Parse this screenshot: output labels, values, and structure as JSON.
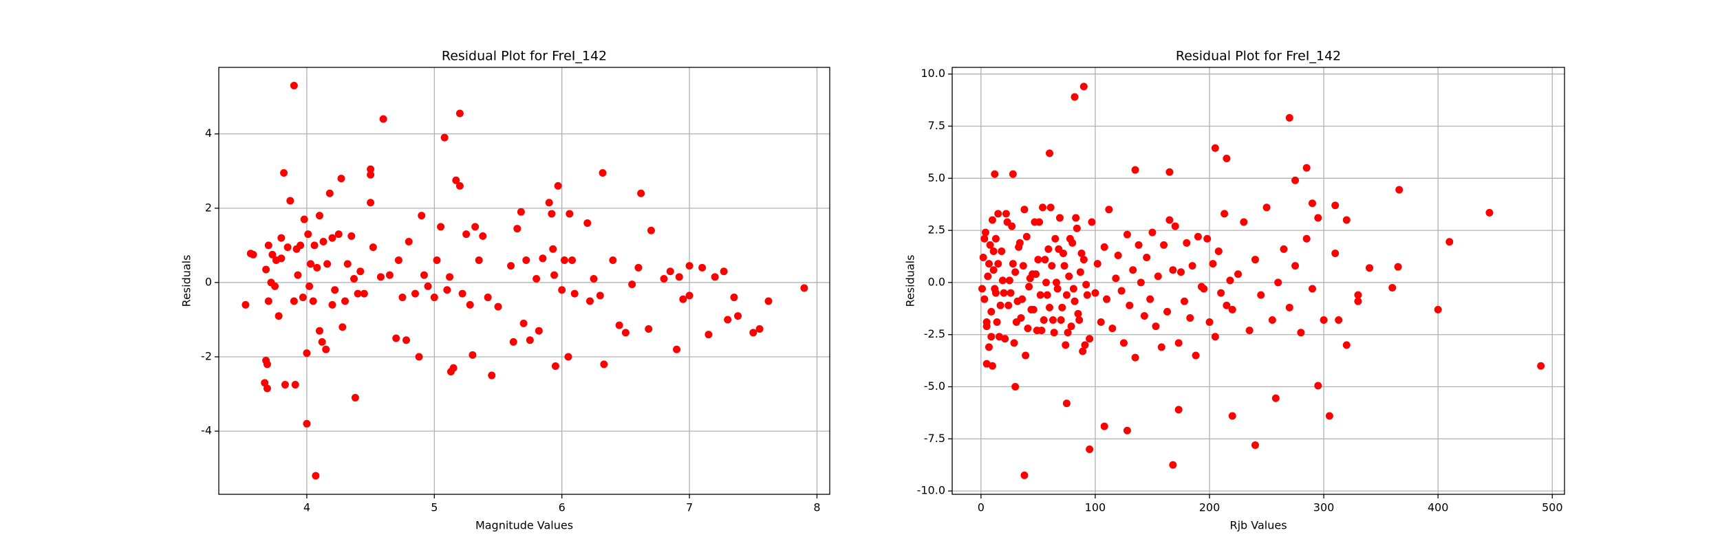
{
  "chart_data": [
    {
      "type": "scatter",
      "title": "Residual Plot for FreI_142",
      "xlabel": "Magnitude Values",
      "ylabel": "Residuals",
      "color": "#ff0000",
      "grid": true,
      "xlim": [
        3.31,
        8.1
      ],
      "ylim": [
        -5.7,
        5.79
      ],
      "xticks": [
        4,
        5,
        6,
        7,
        8
      ],
      "yticks": [
        -4,
        -2,
        0,
        2,
        4
      ],
      "x": [
        3.52,
        3.56,
        3.58,
        3.67,
        3.68,
        3.69,
        3.69,
        3.68,
        3.7,
        3.7,
        3.72,
        3.73,
        3.75,
        3.76,
        3.78,
        3.8,
        3.8,
        3.82,
        3.83,
        3.85,
        3.87,
        3.9,
        3.9,
        3.91,
        3.92,
        3.93,
        3.95,
        3.97,
        3.98,
        4.0,
        4.0,
        4.01,
        4.02,
        4.03,
        4.05,
        4.06,
        4.07,
        4.08,
        4.1,
        4.1,
        4.12,
        4.13,
        4.15,
        4.16,
        4.18,
        4.2,
        4.2,
        4.22,
        4.25,
        4.27,
        4.28,
        4.3,
        4.32,
        4.35,
        4.37,
        4.38,
        4.4,
        4.42,
        4.45,
        4.5,
        4.5,
        4.5,
        4.52,
        4.58,
        4.6,
        4.65,
        4.7,
        4.72,
        4.75,
        4.78,
        4.8,
        4.85,
        4.88,
        4.9,
        4.92,
        4.95,
        5.0,
        5.02,
        5.05,
        5.08,
        5.1,
        5.12,
        5.13,
        5.15,
        5.17,
        5.2,
        5.2,
        5.22,
        5.25,
        5.28,
        5.3,
        5.32,
        5.35,
        5.38,
        5.42,
        5.45,
        5.5,
        5.6,
        5.62,
        5.65,
        5.68,
        5.7,
        5.72,
        5.75,
        5.8,
        5.82,
        5.85,
        5.9,
        5.92,
        5.93,
        5.94,
        5.95,
        5.97,
        6.0,
        6.02,
        6.05,
        6.06,
        6.08,
        6.1,
        6.2,
        6.22,
        6.25,
        6.3,
        6.32,
        6.33,
        6.4,
        6.45,
        6.5,
        6.55,
        6.6,
        6.62,
        6.68,
        6.7,
        6.8,
        6.85,
        6.9,
        6.92,
        6.95,
        7.0,
        7.0,
        7.1,
        7.15,
        7.2,
        7.27,
        7.3,
        7.35,
        7.38,
        7.5,
        7.55,
        7.62,
        7.9
      ],
      "values": [
        -0.6,
        0.78,
        0.75,
        -2.7,
        -2.1,
        -2.2,
        -2.85,
        0.35,
        1.0,
        -0.5,
        0.0,
        0.75,
        -0.1,
        0.6,
        -0.9,
        1.2,
        0.65,
        2.95,
        -2.75,
        0.95,
        2.2,
        5.3,
        -0.5,
        -2.75,
        0.9,
        0.2,
        1.0,
        -0.4,
        1.7,
        -1.9,
        -3.8,
        1.3,
        -0.1,
        0.5,
        -0.5,
        1.0,
        -5.2,
        0.4,
        1.8,
        -1.3,
        -1.6,
        1.1,
        -1.8,
        0.5,
        2.4,
        1.2,
        -0.6,
        -0.2,
        1.3,
        2.8,
        -1.2,
        -0.5,
        0.5,
        1.25,
        0.1,
        -3.1,
        -0.3,
        0.3,
        -0.3,
        3.05,
        2.15,
        2.9,
        0.95,
        0.15,
        4.4,
        0.2,
        -1.5,
        0.6,
        -0.4,
        -1.55,
        1.1,
        -0.3,
        -2.0,
        1.8,
        0.2,
        -0.1,
        -0.4,
        0.6,
        1.5,
        3.9,
        -0.2,
        0.15,
        -2.4,
        -2.3,
        2.75,
        4.55,
        2.6,
        -0.3,
        1.3,
        -0.6,
        -1.95,
        1.5,
        0.6,
        1.25,
        -0.4,
        -2.5,
        -0.65,
        0.45,
        -1.6,
        1.45,
        1.9,
        -1.1,
        0.6,
        -1.55,
        0.1,
        -1.3,
        0.65,
        2.15,
        1.85,
        0.9,
        0.2,
        -2.25,
        2.6,
        -0.2,
        0.6,
        -2.0,
        1.85,
        0.6,
        -0.3,
        1.6,
        -0.5,
        0.1,
        -0.35,
        2.95,
        -2.2,
        0.6,
        -1.15,
        -1.35,
        -0.05,
        0.4,
        2.4,
        -1.25,
        1.4,
        0.1,
        0.3,
        -1.8,
        0.15,
        -0.45,
        -0.35,
        0.45,
        0.4,
        -1.4,
        0.15,
        0.3,
        -1.0,
        -0.4,
        -0.9,
        -1.35,
        -1.25,
        -0.5,
        -0.15
      ]
    },
    {
      "type": "scatter",
      "title": "Residual Plot for FreI_142",
      "xlabel": "Rjb Values",
      "ylabel": "Residuals",
      "color": "#ff0000",
      "grid": true,
      "xlim": [
        -25.2,
        510.7
      ],
      "ylim": [
        -10.16,
        10.32
      ],
      "xticks": [
        0,
        100,
        200,
        300,
        400,
        500
      ],
      "yticks": [
        {
          "value": -10,
          "label": "-10.0"
        },
        {
          "value": -7.5,
          "label": "-7.5"
        },
        {
          "value": -5,
          "label": "-5.0"
        },
        {
          "value": -2.5,
          "label": "-2.5"
        },
        {
          "value": 0,
          "label": "0.0"
        },
        {
          "value": 2.5,
          "label": "2.5"
        },
        {
          "value": 5,
          "label": "5.0"
        },
        {
          "value": 7.5,
          "label": "7.5"
        },
        {
          "value": 10,
          "label": "10.0"
        }
      ],
      "x": [
        2,
        3,
        4,
        5,
        6,
        7,
        8,
        9,
        10,
        11,
        12,
        13,
        14,
        15,
        16,
        18,
        20,
        22,
        24,
        25,
        27,
        29,
        30,
        32,
        34,
        35,
        37,
        39,
        40,
        42,
        44,
        45,
        47,
        49,
        50,
        52,
        54,
        55,
        57,
        59,
        60,
        62,
        64,
        65,
        67,
        69,
        70,
        72,
        74,
        75,
        77,
        79,
        80,
        82,
        84,
        85,
        87,
        89,
        90,
        92,
        95,
        97,
        100,
        102,
        105,
        108,
        110,
        112,
        115,
        118,
        120,
        123,
        125,
        128,
        130,
        133,
        135,
        138,
        140,
        143,
        145,
        148,
        150,
        153,
        155,
        158,
        160,
        163,
        165,
        168,
        170,
        173,
        175,
        178,
        180,
        183,
        185,
        188,
        190,
        193,
        195,
        198,
        200,
        203,
        205,
        208,
        210,
        213,
        215,
        218,
        220,
        225,
        230,
        235,
        240,
        245,
        250,
        255,
        260,
        265,
        270,
        275,
        280,
        285,
        290,
        295,
        300,
        310,
        320,
        330,
        340,
        1,
        3,
        5,
        7,
        9,
        11,
        13,
        15,
        17,
        19,
        21,
        23,
        26,
        28,
        31,
        33,
        36,
        38,
        41,
        43,
        46,
        48,
        51,
        53,
        56,
        58,
        61,
        63,
        66,
        68,
        71,
        73,
        76,
        78,
        81,
        83,
        86,
        88,
        91,
        93,
        38,
        82,
        90,
        270,
        445,
        490,
        410,
        400,
        366,
        365,
        360,
        168,
        95,
        240,
        108,
        128,
        220,
        305,
        60,
        205,
        215,
        285,
        275,
        290,
        320,
        310,
        330,
        313,
        295,
        258,
        173,
        75,
        30,
        5,
        10,
        135,
        165,
        12,
        28
      ],
      "values": [
        1.2,
        -0.8,
        2.4,
        -2.1,
        0.3,
        -3.1,
        1.8,
        -1.4,
        3.0,
        0.6,
        -0.3,
        2.1,
        -1.9,
        0.9,
        -2.6,
        1.5,
        -0.5,
        3.3,
        -1.1,
        0.1,
        2.7,
        -2.9,
        0.5,
        -0.9,
        1.9,
        -1.7,
        0.8,
        -3.5,
        2.2,
        -0.2,
        -1.3,
        0.4,
        2.9,
        -2.3,
        1.1,
        -0.6,
        3.6,
        -1.8,
        0.0,
        1.6,
        -1.2,
        0.8,
        -2.4,
        2.1,
        -0.3,
        3.1,
        -1.8,
        1.4,
        -3.0,
        -0.6,
        0.3,
        -2.1,
        1.9,
        -0.9,
        2.6,
        -1.5,
        0.5,
        -3.3,
        1.1,
        -0.1,
        -2.7,
        2.9,
        -0.5,
        0.9,
        -1.9,
        1.7,
        -0.8,
        3.5,
        -2.2,
        0.2,
        1.3,
        -0.4,
        -2.9,
        2.3,
        -1.1,
        0.6,
        -3.6,
        1.8,
        0.0,
        -1.6,
        1.2,
        -0.8,
        2.4,
        -2.1,
        0.3,
        -3.1,
        1.8,
        -1.4,
        3.0,
        0.6,
        2.7,
        -2.9,
        0.5,
        -0.9,
        1.9,
        -1.7,
        0.8,
        -3.5,
        2.2,
        -0.2,
        -0.3,
        2.1,
        -1.9,
        0.9,
        -2.6,
        1.5,
        -0.5,
        3.3,
        -1.1,
        0.1,
        -1.3,
        0.4,
        2.9,
        -2.3,
        1.1,
        -0.6,
        3.6,
        -1.8,
        0.0,
        1.6,
        -1.2,
        0.8,
        -2.4,
        2.1,
        -0.3,
        3.1,
        -1.8,
        1.4,
        -3.0,
        -0.6,
        0.7,
        -0.3,
        2.1,
        -1.9,
        0.9,
        -2.6,
        1.5,
        -0.5,
        3.3,
        -1.1,
        0.1,
        -2.7,
        2.9,
        -0.5,
        0.9,
        -1.9,
        1.7,
        -0.8,
        3.5,
        -2.2,
        0.2,
        -1.3,
        0.4,
        2.9,
        -2.3,
        1.1,
        -0.6,
        3.6,
        -1.8,
        0.0,
        1.6,
        -1.2,
        0.8,
        -2.4,
        2.1,
        -0.3,
        3.1,
        -1.8,
        1.4,
        -3.0,
        -0.6,
        -9.25,
        8.9,
        9.4,
        7.9,
        3.35,
        -4.0,
        1.95,
        -1.3,
        4.45,
        0.75,
        -0.25,
        -8.75,
        -8.0,
        -7.8,
        -6.9,
        -7.1,
        -6.4,
        -6.4,
        6.2,
        6.45,
        5.95,
        5.5,
        4.9,
        3.8,
        3.0,
        3.7,
        -0.9,
        -1.8,
        -4.95,
        -5.55,
        -6.1,
        -5.8,
        -5.0,
        -3.9,
        -4.0,
        5.4,
        5.3,
        5.2,
        5.2
      ]
    }
  ]
}
